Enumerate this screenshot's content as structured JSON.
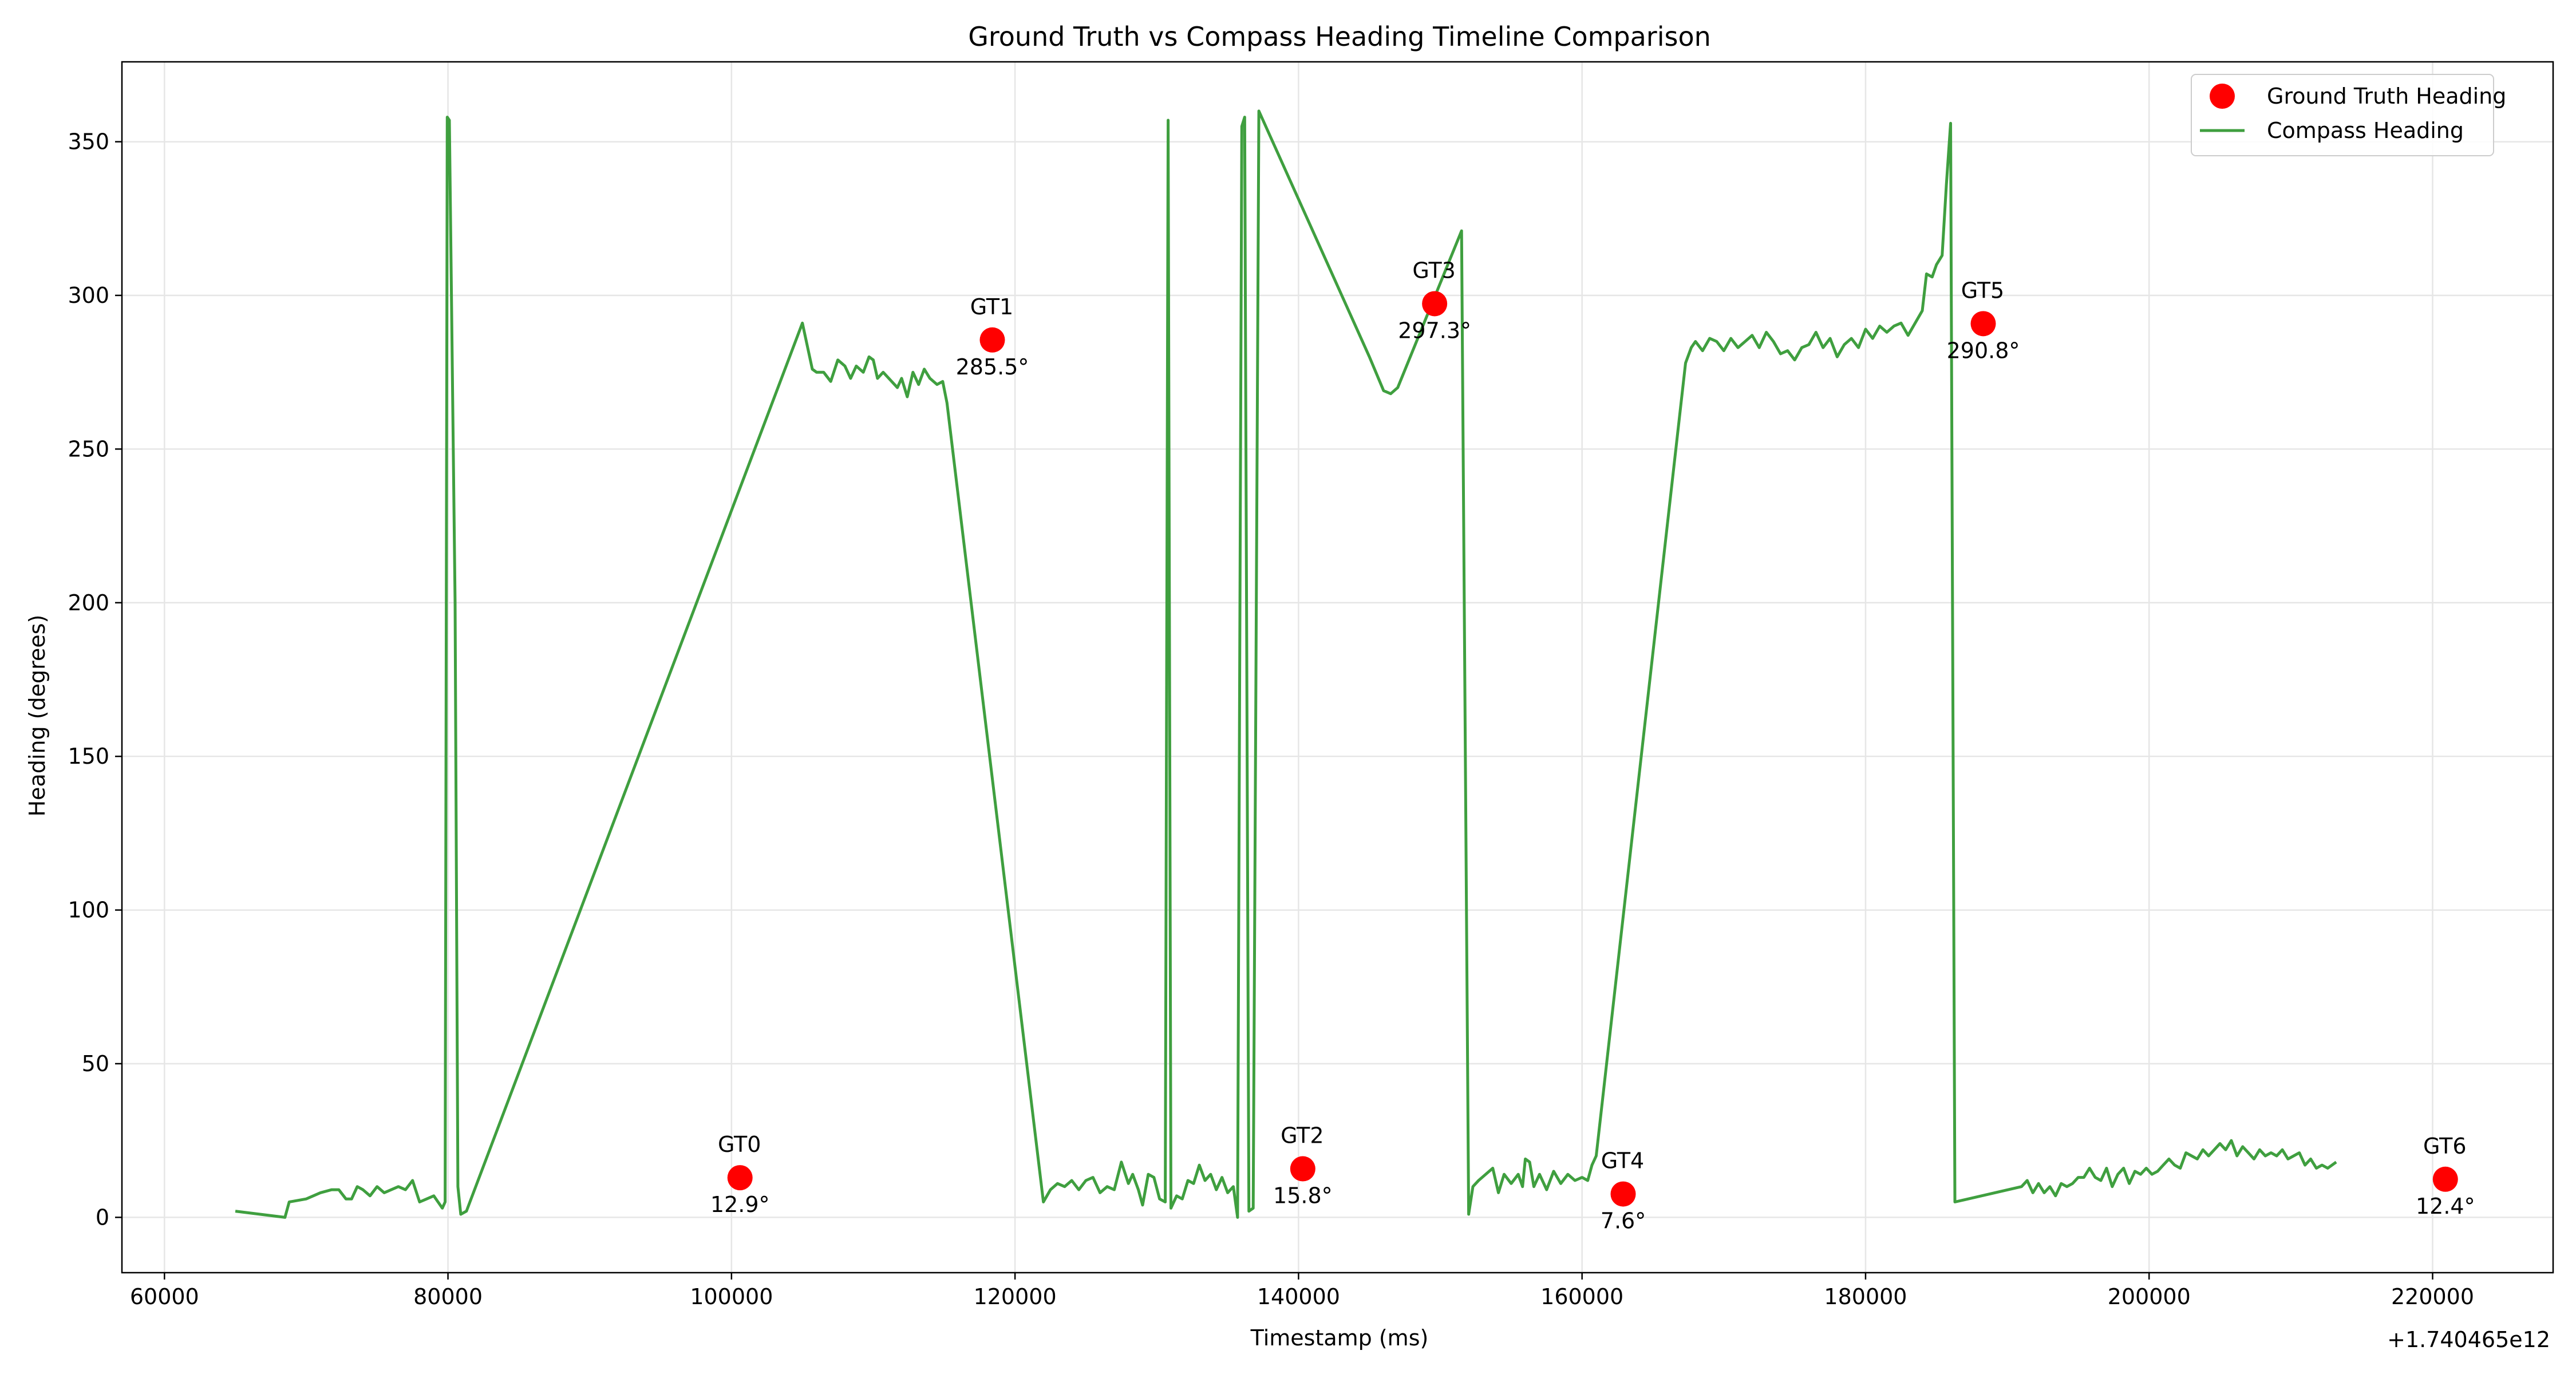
{
  "chart_data": {
    "type": "line",
    "title": "Ground Truth vs Compass Heading Timeline Comparison",
    "xlabel": "Timestamp (ms)",
    "ylabel": "Heading (degrees)",
    "x_offset_label": "+1.740465e12",
    "xlim": [
      57000,
      228500
    ],
    "ylim": [
      -18,
      376
    ],
    "x_ticks": [
      60000,
      80000,
      100000,
      120000,
      140000,
      160000,
      180000,
      200000,
      220000
    ],
    "y_ticks": [
      0,
      50,
      100,
      150,
      200,
      250,
      300,
      350
    ],
    "grid": true,
    "legend_position": "top-right",
    "series": [
      {
        "name": "Ground Truth Heading",
        "type": "scatter",
        "color": "#ff0000",
        "points": [
          {
            "label": "GT0",
            "value_label": "12.9°",
            "x": 100600,
            "y": 12.9
          },
          {
            "label": "GT1",
            "value_label": "285.5°",
            "x": 118400,
            "y": 285.5
          },
          {
            "label": "GT2",
            "value_label": "15.8°",
            "x": 140300,
            "y": 15.8
          },
          {
            "label": "GT3",
            "value_label": "297.3°",
            "x": 149600,
            "y": 297.3
          },
          {
            "label": "GT4",
            "value_label": "7.6°",
            "x": 162900,
            "y": 7.6
          },
          {
            "label": "GT5",
            "value_label": "290.8°",
            "x": 188300,
            "y": 290.8
          },
          {
            "label": "GT6",
            "value_label": "12.4°",
            "x": 220900,
            "y": 12.4
          }
        ]
      },
      {
        "name": "Compass Heading",
        "type": "line",
        "color": "#3f9f3f",
        "points": [
          [
            65000,
            2
          ],
          [
            68500,
            0
          ],
          [
            68800,
            5
          ],
          [
            70000,
            6
          ],
          [
            71000,
            8
          ],
          [
            71800,
            9
          ],
          [
            72300,
            9
          ],
          [
            72800,
            6
          ],
          [
            73200,
            6
          ],
          [
            73600,
            10
          ],
          [
            74000,
            9
          ],
          [
            74500,
            7
          ],
          [
            75000,
            10
          ],
          [
            75500,
            8
          ],
          [
            76000,
            9
          ],
          [
            76500,
            10
          ],
          [
            77000,
            9
          ],
          [
            77500,
            12
          ],
          [
            78000,
            5
          ],
          [
            78500,
            6
          ],
          [
            79000,
            7
          ],
          [
            79300,
            5
          ],
          [
            79600,
            3
          ],
          [
            79800,
            5
          ],
          [
            79950,
            358
          ],
          [
            80100,
            357
          ],
          [
            80500,
            200
          ],
          [
            80700,
            10
          ],
          [
            80900,
            1
          ],
          [
            81300,
            2
          ],
          [
            105000,
            291
          ],
          [
            105700,
            276
          ],
          [
            106000,
            275
          ],
          [
            106500,
            275
          ],
          [
            107000,
            272
          ],
          [
            107500,
            279
          ],
          [
            108000,
            277
          ],
          [
            108400,
            273
          ],
          [
            108800,
            277
          ],
          [
            109300,
            275
          ],
          [
            109700,
            280
          ],
          [
            110000,
            279
          ],
          [
            110300,
            273
          ],
          [
            110700,
            275
          ],
          [
            111300,
            272
          ],
          [
            111700,
            270
          ],
          [
            112000,
            273
          ],
          [
            112400,
            267
          ],
          [
            112800,
            275
          ],
          [
            113200,
            271
          ],
          [
            113600,
            276
          ],
          [
            114000,
            273
          ],
          [
            114500,
            271
          ],
          [
            114900,
            272
          ],
          [
            115200,
            265
          ],
          [
            122000,
            5
          ],
          [
            122500,
            9
          ],
          [
            123000,
            11
          ],
          [
            123500,
            10
          ],
          [
            124000,
            12
          ],
          [
            124500,
            9
          ],
          [
            125000,
            12
          ],
          [
            125500,
            13
          ],
          [
            126000,
            8
          ],
          [
            126500,
            10
          ],
          [
            127000,
            9
          ],
          [
            127500,
            18
          ],
          [
            128000,
            11
          ],
          [
            128300,
            14
          ],
          [
            128700,
            9
          ],
          [
            129000,
            4
          ],
          [
            129400,
            14
          ],
          [
            129800,
            13
          ],
          [
            130200,
            6
          ],
          [
            130600,
            5
          ],
          [
            130800,
            357
          ],
          [
            131000,
            3
          ],
          [
            131400,
            7
          ],
          [
            131800,
            6
          ],
          [
            132200,
            12
          ],
          [
            132600,
            11
          ],
          [
            133000,
            17
          ],
          [
            133400,
            12
          ],
          [
            133800,
            14
          ],
          [
            134200,
            9
          ],
          [
            134600,
            13
          ],
          [
            135000,
            8
          ],
          [
            135400,
            10
          ],
          [
            135700,
            0
          ],
          [
            136000,
            355
          ],
          [
            136200,
            358
          ],
          [
            136500,
            2
          ],
          [
            136800,
            3
          ],
          [
            137200,
            360
          ],
          [
            145000,
            280
          ],
          [
            146000,
            269
          ],
          [
            146500,
            268
          ],
          [
            147000,
            270
          ],
          [
            151500,
            321
          ],
          [
            152000,
            1
          ],
          [
            152300,
            10
          ],
          [
            152700,
            12
          ],
          [
            153200,
            14
          ],
          [
            153700,
            16
          ],
          [
            154100,
            8
          ],
          [
            154500,
            14
          ],
          [
            155000,
            11
          ],
          [
            155500,
            14
          ],
          [
            155800,
            10
          ],
          [
            156000,
            19
          ],
          [
            156300,
            18
          ],
          [
            156600,
            10
          ],
          [
            157000,
            14
          ],
          [
            157500,
            9
          ],
          [
            158000,
            15
          ],
          [
            158500,
            11
          ],
          [
            159000,
            14
          ],
          [
            159500,
            12
          ],
          [
            160000,
            13
          ],
          [
            160400,
            12
          ],
          [
            160700,
            17
          ],
          [
            161000,
            20
          ],
          [
            167300,
            278
          ],
          [
            167700,
            283
          ],
          [
            168000,
            285
          ],
          [
            168500,
            282
          ],
          [
            169000,
            286
          ],
          [
            169500,
            285
          ],
          [
            170000,
            282
          ],
          [
            170500,
            286
          ],
          [
            171000,
            283
          ],
          [
            171500,
            285
          ],
          [
            172000,
            287
          ],
          [
            172500,
            283
          ],
          [
            173000,
            288
          ],
          [
            173500,
            285
          ],
          [
            174000,
            281
          ],
          [
            174500,
            282
          ],
          [
            175000,
            279
          ],
          [
            175500,
            283
          ],
          [
            176000,
            284
          ],
          [
            176500,
            288
          ],
          [
            177000,
            283
          ],
          [
            177500,
            286
          ],
          [
            178000,
            280
          ],
          [
            178500,
            284
          ],
          [
            179000,
            286
          ],
          [
            179500,
            283
          ],
          [
            180000,
            289
          ],
          [
            180500,
            286
          ],
          [
            181000,
            290
          ],
          [
            181500,
            288
          ],
          [
            182000,
            290
          ],
          [
            182500,
            291
          ],
          [
            183000,
            287
          ],
          [
            183500,
            291
          ],
          [
            184000,
            295
          ],
          [
            184300,
            307
          ],
          [
            184700,
            306
          ],
          [
            185000,
            310
          ],
          [
            185400,
            313
          ],
          [
            185700,
            336
          ],
          [
            186000,
            356
          ],
          [
            186300,
            5
          ],
          [
            191000,
            10
          ],
          [
            191400,
            12
          ],
          [
            191800,
            8
          ],
          [
            192200,
            11
          ],
          [
            192600,
            8
          ],
          [
            193000,
            10
          ],
          [
            193400,
            7
          ],
          [
            193800,
            11
          ],
          [
            194200,
            10
          ],
          [
            194600,
            11
          ],
          [
            195000,
            13
          ],
          [
            195400,
            13
          ],
          [
            195800,
            16
          ],
          [
            196200,
            13
          ],
          [
            196600,
            12
          ],
          [
            197000,
            16
          ],
          [
            197400,
            10
          ],
          [
            197800,
            14
          ],
          [
            198200,
            16
          ],
          [
            198600,
            11
          ],
          [
            199000,
            15
          ],
          [
            199400,
            14
          ],
          [
            199800,
            16
          ],
          [
            200200,
            14
          ],
          [
            200600,
            15
          ],
          [
            201000,
            17
          ],
          [
            201400,
            19
          ],
          [
            201800,
            17
          ],
          [
            202200,
            16
          ],
          [
            202600,
            21
          ],
          [
            203000,
            20
          ],
          [
            203400,
            19
          ],
          [
            203800,
            22
          ],
          [
            204200,
            20
          ],
          [
            204600,
            22
          ],
          [
            205000,
            24
          ],
          [
            205400,
            22
          ],
          [
            205800,
            25
          ],
          [
            206200,
            20
          ],
          [
            206600,
            23
          ],
          [
            207000,
            21
          ],
          [
            207400,
            19
          ],
          [
            207800,
            22
          ],
          [
            208200,
            20
          ],
          [
            208600,
            21
          ],
          [
            209000,
            20
          ],
          [
            209400,
            22
          ],
          [
            209800,
            19
          ],
          [
            210200,
            20
          ],
          [
            210600,
            21
          ],
          [
            211000,
            17
          ],
          [
            211400,
            19
          ],
          [
            211800,
            16
          ],
          [
            212200,
            17
          ],
          [
            212600,
            16
          ],
          [
            213200,
            18
          ]
        ]
      }
    ]
  }
}
